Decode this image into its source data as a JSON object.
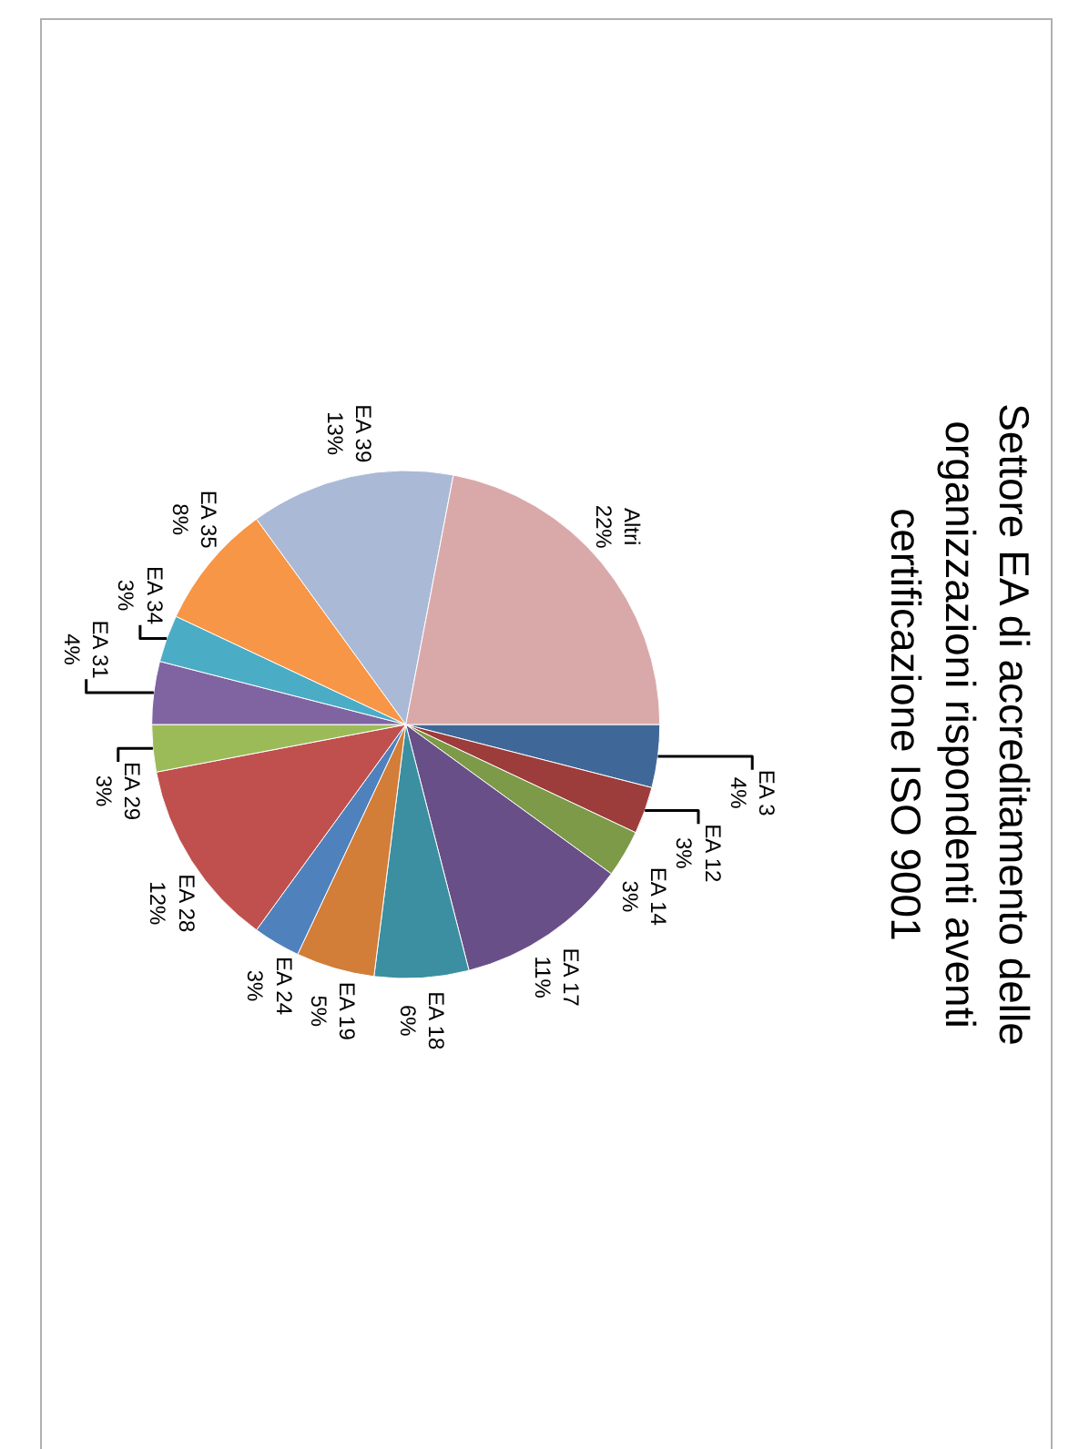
{
  "chart_data": {
    "type": "pie",
    "title": "Settore EA di accreditamento delle\norganizzazioni rispondenti aventi\ncertificazione ISO 9001",
    "categories": [
      "EA 3",
      "EA 12",
      "EA 14",
      "EA 17",
      "EA 18",
      "EA 19",
      "EA 24",
      "EA 28",
      "EA 29",
      "EA 31",
      "EA 34",
      "EA 35",
      "EA 39",
      "Altri"
    ],
    "values": [
      4,
      3,
      3,
      11,
      6,
      5,
      3,
      12,
      3,
      4,
      3,
      8,
      13,
      22
    ],
    "value_labels": [
      "4%",
      "3%",
      "3%",
      "11%",
      "6%",
      "5%",
      "3%",
      "12%",
      "3%",
      "4%",
      "3%",
      "8%",
      "13%",
      "22%"
    ],
    "colors": [
      "#3f6898",
      "#9c3d3b",
      "#7c9a48",
      "#694f87",
      "#3b8fa0",
      "#d27d38",
      "#4f81bd",
      "#c0504d",
      "#9bbb59",
      "#8064a2",
      "#4bacc6",
      "#f79646",
      "#aab9d6",
      "#d9a9a9"
    ],
    "legend": false
  }
}
